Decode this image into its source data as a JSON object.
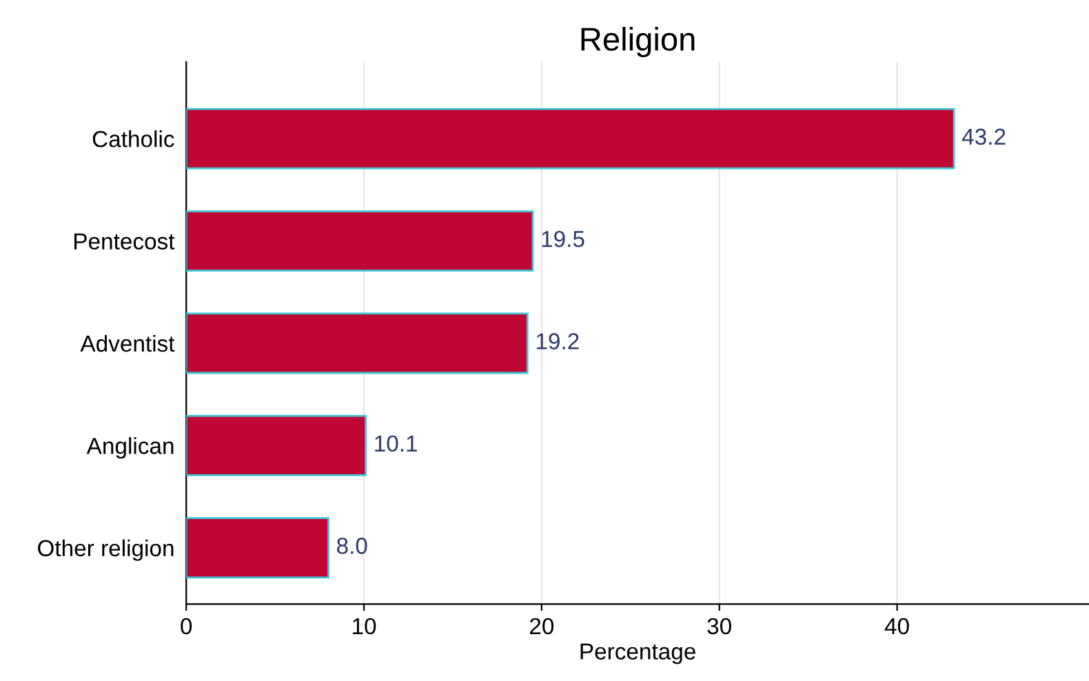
{
  "chart_data": {
    "type": "bar",
    "orientation": "horizontal",
    "title": "Religion",
    "xlabel": "Percentage",
    "categories": [
      "Catholic",
      "Pentecost",
      "Adventist",
      "Anglican",
      "Other religion"
    ],
    "values": [
      43.2,
      19.5,
      19.2,
      10.1,
      8.0
    ],
    "value_labels": [
      "43.2",
      "19.5",
      "19.2",
      "10.1",
      "8.0"
    ],
    "color": "#c00633",
    "xlim": [
      0,
      50.8
    ],
    "xticks": [
      0,
      10,
      20,
      30,
      40
    ],
    "grid": "x",
    "legend": false
  }
}
